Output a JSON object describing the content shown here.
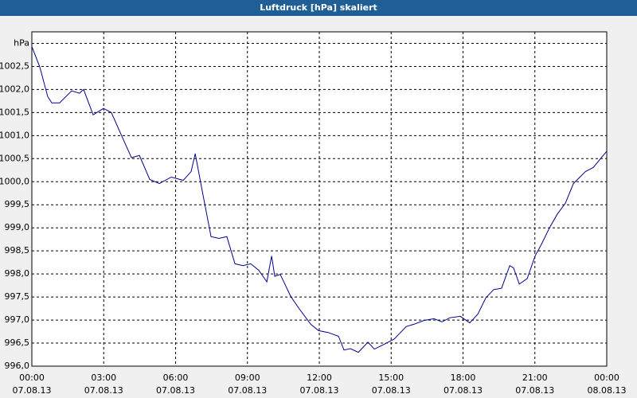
{
  "chart_data": {
    "type": "line",
    "title": "Luftdruck [hPa] skaliert",
    "x": [
      0,
      0.33,
      0.66,
      0.83,
      1.16,
      1.66,
      1.99,
      2.16,
      2.56,
      2.99,
      3.32,
      3.66,
      4.16,
      4.49,
      4.92,
      5.32,
      5.82,
      6.32,
      6.65,
      6.82,
      7.15,
      7.48,
      7.81,
      8.14,
      8.48,
      8.81,
      9.14,
      9.47,
      9.81,
      10.01,
      10.14,
      10.37,
      10.8,
      11.14,
      11.64,
      11.97,
      12.37,
      12.8,
      13.03,
      13.3,
      13.63,
      14.03,
      14.3,
      14.69,
      15.13,
      15.63,
      15.96,
      16.36,
      16.79,
      17.12,
      17.45,
      17.89,
      18.28,
      18.62,
      18.95,
      19.28,
      19.61,
      19.95,
      20.11,
      20.35,
      20.68,
      21.01,
      21.28,
      21.61,
      21.94,
      22.27,
      22.61,
      23.11,
      23.44,
      23.77,
      24
    ],
    "series": [
      {
        "name": "Luftdruck",
        "color": "#00008b",
        "values": [
          1002.93,
          1002.49,
          1001.85,
          1001.71,
          1001.71,
          1001.97,
          1001.92,
          1002.0,
          1001.45,
          1001.59,
          1001.5,
          1001.1,
          1000.52,
          1000.57,
          1000.05,
          999.96,
          1000.1,
          1000.03,
          1000.22,
          1000.61,
          999.7,
          998.81,
          998.77,
          998.81,
          998.22,
          998.18,
          998.22,
          998.08,
          997.83,
          998.39,
          997.95,
          997.99,
          997.52,
          997.26,
          996.91,
          996.77,
          996.73,
          996.65,
          996.35,
          996.38,
          996.3,
          996.52,
          996.37,
          996.47,
          996.59,
          996.86,
          996.91,
          996.99,
          997.03,
          996.96,
          997.05,
          997.08,
          996.94,
          997.13,
          997.48,
          997.66,
          997.69,
          998.18,
          998.13,
          997.78,
          997.9,
          998.39,
          998.65,
          999.0,
          999.3,
          999.53,
          999.96,
          1000.22,
          1000.31,
          1000.52,
          1000.66
        ]
      }
    ],
    "xlim": [
      0,
      24
    ],
    "xticks": [
      {
        "value": 0,
        "label": "00:00",
        "date": "07.08.13"
      },
      {
        "value": 3,
        "label": "03:00",
        "date": "07.08.13"
      },
      {
        "value": 6,
        "label": "06:00",
        "date": "07.08.13"
      },
      {
        "value": 9,
        "label": "09:00",
        "date": "07.08.13"
      },
      {
        "value": 12,
        "label": "12:00",
        "date": "07.08.13"
      },
      {
        "value": 15,
        "label": "15:00",
        "date": "07.08.13"
      },
      {
        "value": 18,
        "label": "18:00",
        "date": "07.08.13"
      },
      {
        "value": 21,
        "label": "21:00",
        "date": "07.08.13"
      },
      {
        "value": 24,
        "label": "00:00",
        "date": "08.08.13"
      }
    ],
    "ylim": [
      996,
      1003.25
    ],
    "yticks": [
      {
        "value": 996,
        "label": "996,0"
      },
      {
        "value": 996.5,
        "label": "996,5"
      },
      {
        "value": 997,
        "label": "997,0"
      },
      {
        "value": 997.5,
        "label": "997,5"
      },
      {
        "value": 998,
        "label": "998,0"
      },
      {
        "value": 998.5,
        "label": "998,5"
      },
      {
        "value": 999,
        "label": "999,0"
      },
      {
        "value": 999.5,
        "label": "999,5"
      },
      {
        "value": 1000,
        "label": "1000,0"
      },
      {
        "value": 1000.5,
        "label": "1000,5"
      },
      {
        "value": 1001,
        "label": "1001,0"
      },
      {
        "value": 1001.5,
        "label": "1001,5"
      },
      {
        "value": 1002,
        "label": "1002,0"
      },
      {
        "value": 1002.5,
        "label": "1002,5"
      },
      {
        "value": 1003,
        "label": "hPa"
      }
    ],
    "grid": true
  }
}
